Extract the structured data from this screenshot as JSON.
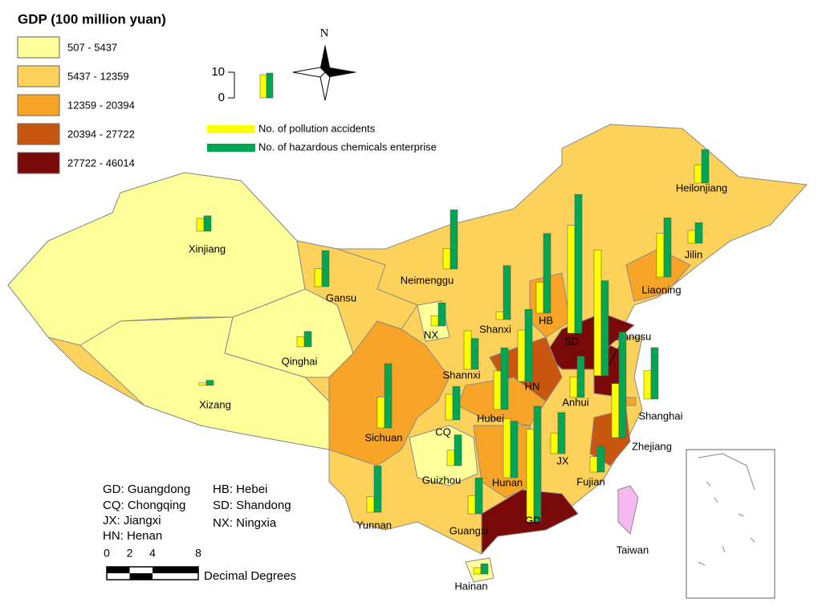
{
  "title": "GDP (100 million yuan)",
  "gdp_legend": [
    {
      "label": "507 - 5437",
      "color": "#ffff99"
    },
    {
      "label": "5437 - 12359",
      "color": "#fdd25a"
    },
    {
      "label": "12359 - 20394",
      "color": "#f8a427"
    },
    {
      "label": "20394 - 27722",
      "color": "#c8560e"
    },
    {
      "label": "27722 - 46014",
      "color": "#7a0a0a"
    }
  ],
  "bar_scale_ticks": [
    0,
    10
  ],
  "series": [
    {
      "name": "No. of pollution accidents",
      "color": "#ffff00"
    },
    {
      "name": "No. of hazardous chemicals enterprise",
      "color": "#00a651"
    }
  ],
  "provinces": [
    {
      "label": "Xinjiang",
      "gdp_class": 0,
      "values": [
        5,
        6
      ]
    },
    {
      "label": "Gansu",
      "gdp_class": 1,
      "values": [
        7,
        14
      ]
    },
    {
      "label": "Qinghai",
      "gdp_class": 0,
      "values": [
        4,
        6
      ]
    },
    {
      "label": "Xizang",
      "gdp_class": 0,
      "values": [
        1,
        2
      ]
    },
    {
      "label": "Neimenggu",
      "gdp_class": 1,
      "values": [
        8,
        23
      ]
    },
    {
      "label": "NX",
      "gdp_class": 0,
      "values": [
        4,
        9
      ]
    },
    {
      "label": "Shanxi",
      "gdp_class": 1,
      "values": [
        3,
        21
      ]
    },
    {
      "label": "HB",
      "gdp_class": 2,
      "values": [
        12,
        31
      ]
    },
    {
      "label": "SD",
      "gdp_class": 4,
      "values": [
        42,
        54
      ]
    },
    {
      "label": "Jiangsu",
      "gdp_class": 4,
      "values": [
        49,
        37
      ]
    },
    {
      "label": "Shanghai",
      "gdp_class": 2,
      "values": [
        11,
        20
      ]
    },
    {
      "label": "Liaoning",
      "gdp_class": 2,
      "values": [
        17,
        23
      ]
    },
    {
      "label": "Jilin",
      "gdp_class": 1,
      "values": [
        5,
        8
      ]
    },
    {
      "label": "Heilonjiang",
      "gdp_class": 1,
      "values": [
        7,
        13
      ]
    },
    {
      "label": "Shannxi",
      "gdp_class": 1,
      "values": [
        15,
        12
      ]
    },
    {
      "label": "HN",
      "gdp_class": 3,
      "values": [
        20,
        28
      ]
    },
    {
      "label": "Anhui",
      "gdp_class": 1,
      "values": [
        8,
        16
      ]
    },
    {
      "label": "Hubei",
      "gdp_class": 2,
      "values": [
        15,
        24
      ]
    },
    {
      "label": "Sichuan",
      "gdp_class": 2,
      "values": [
        12,
        25
      ]
    },
    {
      "label": "CQ",
      "gdp_class": 1,
      "values": [
        10,
        13
      ]
    },
    {
      "label": "Guizhou",
      "gdp_class": 0,
      "values": [
        6,
        12
      ]
    },
    {
      "label": "Hunan",
      "gdp_class": 2,
      "values": [
        23,
        22
      ]
    },
    {
      "label": "GD",
      "gdp_class": 4,
      "values": [
        36,
        45
      ]
    },
    {
      "label": "JX",
      "gdp_class": 1,
      "values": [
        8,
        16
      ]
    },
    {
      "label": "Fujian",
      "gdp_class": 1,
      "values": [
        6,
        10
      ]
    },
    {
      "label": "Zhejiang",
      "gdp_class": 3,
      "values": [
        21,
        41
      ]
    },
    {
      "label": "Yunnan",
      "gdp_class": 1,
      "values": [
        6,
        18
      ]
    },
    {
      "label": "Guangxi",
      "gdp_class": 1,
      "values": [
        7,
        14
      ]
    },
    {
      "label": "Hainan",
      "gdp_class": 0,
      "values": [
        2.5,
        4
      ]
    }
  ],
  "taiwan": {
    "label": "Taiwan",
    "color": "#f5b8f0"
  },
  "abbreviations": [
    "GD: Guangdong",
    "CQ: Chongqing",
    "JX: Jiangxi",
    "HN: Henan",
    "HB: Hebei",
    "SD: Shandong",
    "NX: Ningxia"
  ],
  "scale_bar": {
    "ticks": [
      0,
      2,
      4,
      8
    ],
    "unit": "Decimal Degrees"
  },
  "north": "N"
}
